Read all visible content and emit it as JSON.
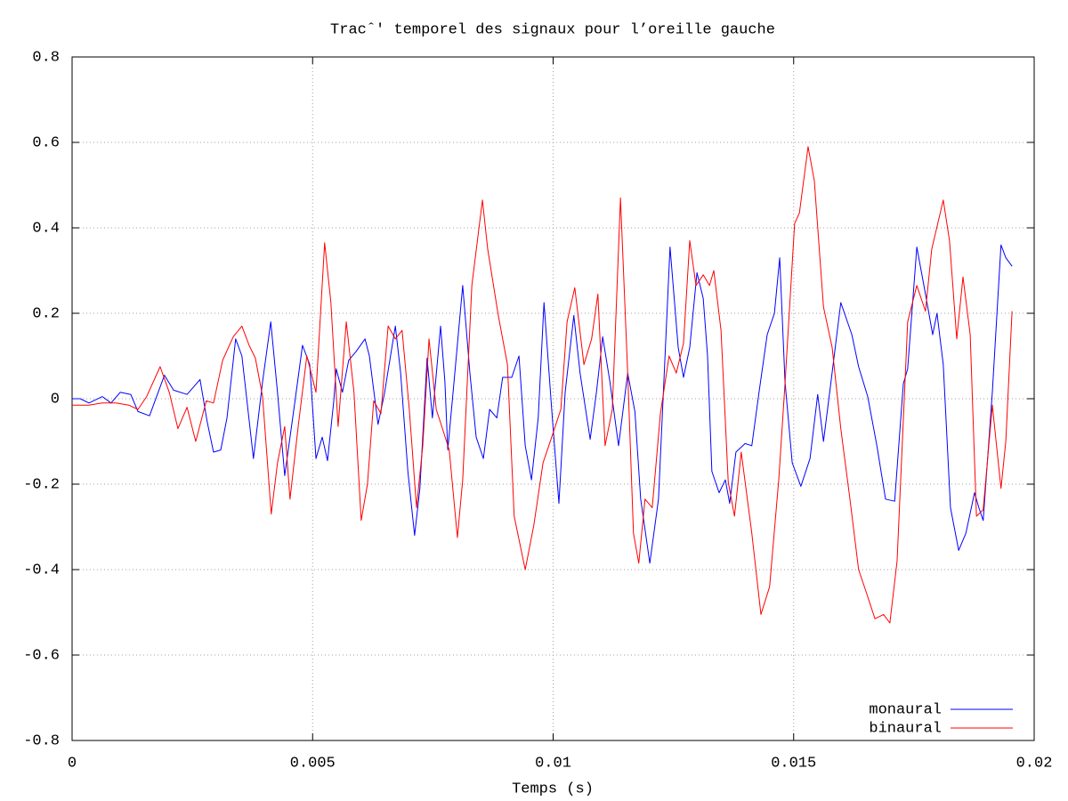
{
  "chart_data": {
    "type": "line",
    "title": "Tracˆ' temporel des signaux pour l’oreille gauche",
    "xlabel": "Temps (s)",
    "xlim": [
      0,
      0.02
    ],
    "xticks": [
      0,
      0.005,
      0.01,
      0.015,
      0.02
    ],
    "ylim": [
      -0.8,
      0.8
    ],
    "yticks": [
      -0.8,
      -0.6,
      -0.4,
      -0.2,
      0,
      0.2,
      0.4,
      0.6,
      0.8
    ],
    "grid": true,
    "legend": "bottom-right",
    "series": [
      {
        "name": "monaural",
        "color": "#0000ff",
        "x": [
          0,
          0.00017,
          0.00035,
          0.00063,
          0.00081,
          0.001,
          0.00122,
          0.00137,
          0.00161,
          0.00192,
          0.00211,
          0.00239,
          0.00266,
          0.00281,
          0.00294,
          0.00309,
          0.00322,
          0.0034,
          0.00353,
          0.00377,
          0.00396,
          0.00413,
          0.00427,
          0.00442,
          0.00461,
          0.00479,
          0.00494,
          0.00507,
          0.0052,
          0.00531,
          0.00544,
          0.00549,
          0.00562,
          0.00575,
          0.0059,
          0.00609,
          0.00618,
          0.00636,
          0.00649,
          0.00672,
          0.00683,
          0.00698,
          0.00712,
          0.00723,
          0.00738,
          0.00749,
          0.00766,
          0.00775,
          0.00781,
          0.00794,
          0.00812,
          0.00827,
          0.0084,
          0.00855,
          0.00868,
          0.00883,
          0.00895,
          0.00914,
          0.00929,
          0.00942,
          0.00955,
          0.00969,
          0.00981,
          0.00997,
          0.01012,
          0.01025,
          0.01043,
          0.01056,
          0.01077,
          0.0109,
          0.01103,
          0.01118,
          0.01136,
          0.01155,
          0.0117,
          0.01182,
          0.01201,
          0.01219,
          0.01243,
          0.0126,
          0.01271,
          0.01284,
          0.01299,
          0.01312,
          0.01321,
          0.0133,
          0.01345,
          0.01358,
          0.01367,
          0.0138,
          0.01399,
          0.01413,
          0.01428,
          0.01445,
          0.0146,
          0.01471,
          0.01482,
          0.01497,
          0.01515,
          0.01534,
          0.0155,
          0.01562,
          0.01576,
          0.01598,
          0.01621,
          0.01635,
          0.01654,
          0.01673,
          0.01691,
          0.0171,
          0.01728,
          0.01737,
          0.01756,
          0.01774,
          0.01789,
          0.01798,
          0.01811,
          0.01826,
          0.01843,
          0.01858,
          0.01876,
          0.01885,
          0.01894,
          0.01913,
          0.01931,
          0.01941,
          0.01954
        ],
        "values": [
          0,
          0,
          -0.01,
          0.005,
          -0.01,
          0.015,
          0.01,
          -0.03,
          -0.04,
          0.055,
          0.02,
          0.01,
          0.045,
          -0.055,
          -0.125,
          -0.12,
          -0.045,
          0.14,
          0.1,
          -0.14,
          0.04,
          0.18,
          0.015,
          -0.18,
          -0.025,
          0.125,
          0.08,
          -0.14,
          -0.09,
          -0.145,
          -0.005,
          0.07,
          0.015,
          0.09,
          0.11,
          0.14,
          0.1,
          -0.06,
          0.01,
          0.17,
          0.06,
          -0.17,
          -0.32,
          -0.21,
          0.095,
          -0.045,
          0.17,
          0.04,
          -0.12,
          0.04,
          0.265,
          0.06,
          -0.09,
          -0.14,
          -0.025,
          -0.045,
          0.05,
          0.05,
          0.1,
          -0.11,
          -0.19,
          -0.045,
          0.225,
          -0.025,
          -0.245,
          0.015,
          0.195,
          0.06,
          -0.095,
          0.015,
          0.145,
          0.04,
          -0.11,
          0.06,
          -0.03,
          -0.235,
          -0.385,
          -0.235,
          0.355,
          0.12,
          0.05,
          0.12,
          0.295,
          0.235,
          0.1,
          -0.17,
          -0.22,
          -0.19,
          -0.245,
          -0.125,
          -0.105,
          -0.11,
          0.015,
          0.15,
          0.2,
          0.33,
          0.04,
          -0.15,
          -0.205,
          -0.14,
          0.01,
          -0.1,
          0.025,
          0.225,
          0.15,
          0.075,
          0.005,
          -0.11,
          -0.235,
          -0.24,
          0.035,
          0.07,
          0.355,
          0.245,
          0.15,
          0.2,
          0.08,
          -0.255,
          -0.355,
          -0.315,
          -0.22,
          -0.255,
          -0.285,
          0.015,
          0.36,
          0.33,
          0.31
        ]
      },
      {
        "name": "binaural",
        "color": "#ff0000",
        "x": [
          0,
          0.00035,
          0.00063,
          0.00091,
          0.00118,
          0.00137,
          0.00155,
          0.00183,
          0.00202,
          0.0022,
          0.00239,
          0.00257,
          0.00279,
          0.00294,
          0.00313,
          0.00335,
          0.00353,
          0.00368,
          0.00381,
          0.00396,
          0.00414,
          0.00427,
          0.00442,
          0.00453,
          0.0047,
          0.00488,
          0.00507,
          0.00525,
          0.00538,
          0.00553,
          0.0057,
          0.00586,
          0.00601,
          0.00614,
          0.00627,
          0.00642,
          0.00657,
          0.00672,
          0.00686,
          0.00701,
          0.00716,
          0.00729,
          0.00742,
          0.00757,
          0.0077,
          0.00784,
          0.00801,
          0.00812,
          0.00831,
          0.00853,
          0.00864,
          0.00886,
          0.00905,
          0.00919,
          0.00942,
          0.0096,
          0.00979,
          0.00997,
          0.01016,
          0.01029,
          0.01045,
          0.01064,
          0.0108,
          0.01093,
          0.01108,
          0.01123,
          0.0114,
          0.01155,
          0.01167,
          0.01178,
          0.01191,
          0.01206,
          0.01223,
          0.01241,
          0.01256,
          0.01271,
          0.01284,
          0.01297,
          0.01312,
          0.01325,
          0.01334,
          0.01349,
          0.01364,
          0.01377,
          0.01391,
          0.01413,
          0.01432,
          0.0145,
          0.01469,
          0.01482,
          0.01502,
          0.01512,
          0.0153,
          0.01543,
          0.01562,
          0.0158,
          0.01598,
          0.01617,
          0.01635,
          0.0165,
          0.01669,
          0.01687,
          0.017,
          0.01715,
          0.01737,
          0.01756,
          0.01774,
          0.01787,
          0.01811,
          0.01824,
          0.01839,
          0.01852,
          0.01867,
          0.0188,
          0.01894,
          0.01913,
          0.01931,
          0.01941,
          0.01954
        ],
        "values": [
          -0.015,
          -0.015,
          -0.01,
          -0.01,
          -0.015,
          -0.025,
          0.005,
          0.075,
          0.015,
          -0.07,
          -0.02,
          -0.1,
          -0.005,
          -0.01,
          0.09,
          0.145,
          0.17,
          0.125,
          0.095,
          0.005,
          -0.27,
          -0.15,
          -0.065,
          -0.235,
          -0.065,
          0.1,
          0.015,
          0.365,
          0.225,
          -0.065,
          0.18,
          0.015,
          -0.285,
          -0.2,
          -0.005,
          -0.035,
          0.17,
          0.14,
          0.16,
          -0.025,
          -0.255,
          -0.11,
          0.14,
          -0.025,
          -0.07,
          -0.12,
          -0.325,
          -0.19,
          0.265,
          0.465,
          0.35,
          0.195,
          0.08,
          -0.275,
          -0.4,
          -0.295,
          -0.15,
          -0.09,
          -0.025,
          0.18,
          0.26,
          0.08,
          0.14,
          0.245,
          -0.11,
          -0.025,
          0.47,
          0.06,
          -0.315,
          -0.385,
          -0.235,
          -0.255,
          -0.035,
          0.1,
          0.06,
          0.13,
          0.37,
          0.265,
          0.29,
          0.265,
          0.3,
          0.16,
          -0.195,
          -0.275,
          -0.125,
          -0.315,
          -0.505,
          -0.44,
          -0.19,
          0.035,
          0.41,
          0.435,
          0.59,
          0.51,
          0.215,
          0.12,
          -0.07,
          -0.235,
          -0.4,
          -0.45,
          -0.515,
          -0.505,
          -0.525,
          -0.38,
          0.18,
          0.265,
          0.205,
          0.35,
          0.465,
          0.37,
          0.14,
          0.285,
          0.15,
          -0.275,
          -0.26,
          -0.015,
          -0.21,
          -0.1,
          0.205
        ]
      }
    ]
  }
}
